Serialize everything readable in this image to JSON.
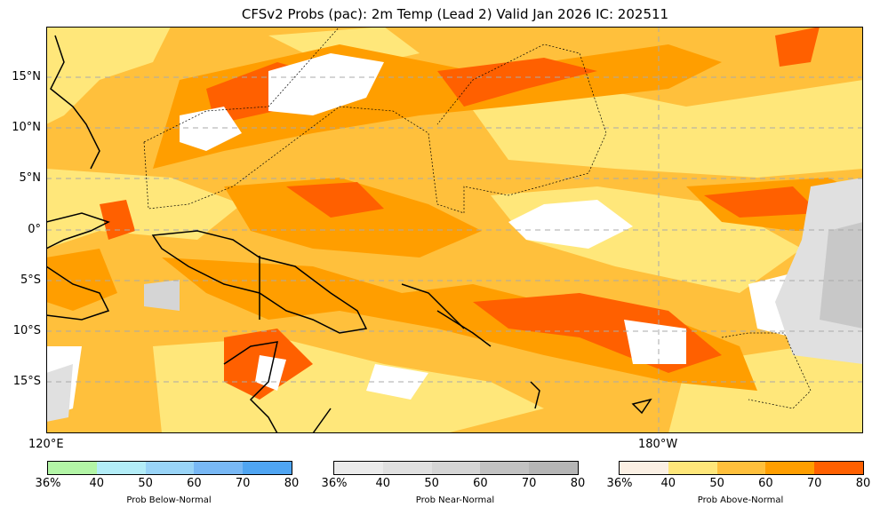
{
  "title": "CFSv2 Probs (pac): 2m Temp (Lead 2) Valid Jan 2026 IC: 202511",
  "lat_labels": [
    "15°N",
    "10°N",
    "5°N",
    "0°",
    "5°S",
    "10°S",
    "15°S"
  ],
  "lon_labels": [
    "120°E",
    "180°W"
  ],
  "colorbars": [
    {
      "label": "Prob Below-Normal",
      "ticks": [
        "36%",
        "40",
        "50",
        "60",
        "70",
        "80"
      ],
      "colors": [
        "#b3f5a6",
        "#b3edf7",
        "#99d4f7",
        "#78b8f5",
        "#4fa5f2"
      ]
    },
    {
      "label": "Prob Near-Normal",
      "ticks": [
        "36%",
        "40",
        "50",
        "60",
        "70",
        "80"
      ],
      "colors": [
        "#ebebeb",
        "#e0e0e0",
        "#d5d5d5",
        "#c2c2c2",
        "#b5b5b5"
      ]
    },
    {
      "label": "Prob Above-Normal",
      "ticks": [
        "36%",
        "40",
        "50",
        "60",
        "70",
        "80"
      ],
      "colors": [
        "#fbf0e4",
        "#ffe77a",
        "#ffc03c",
        "#ff9e00",
        "#ff6000"
      ]
    }
  ]
}
